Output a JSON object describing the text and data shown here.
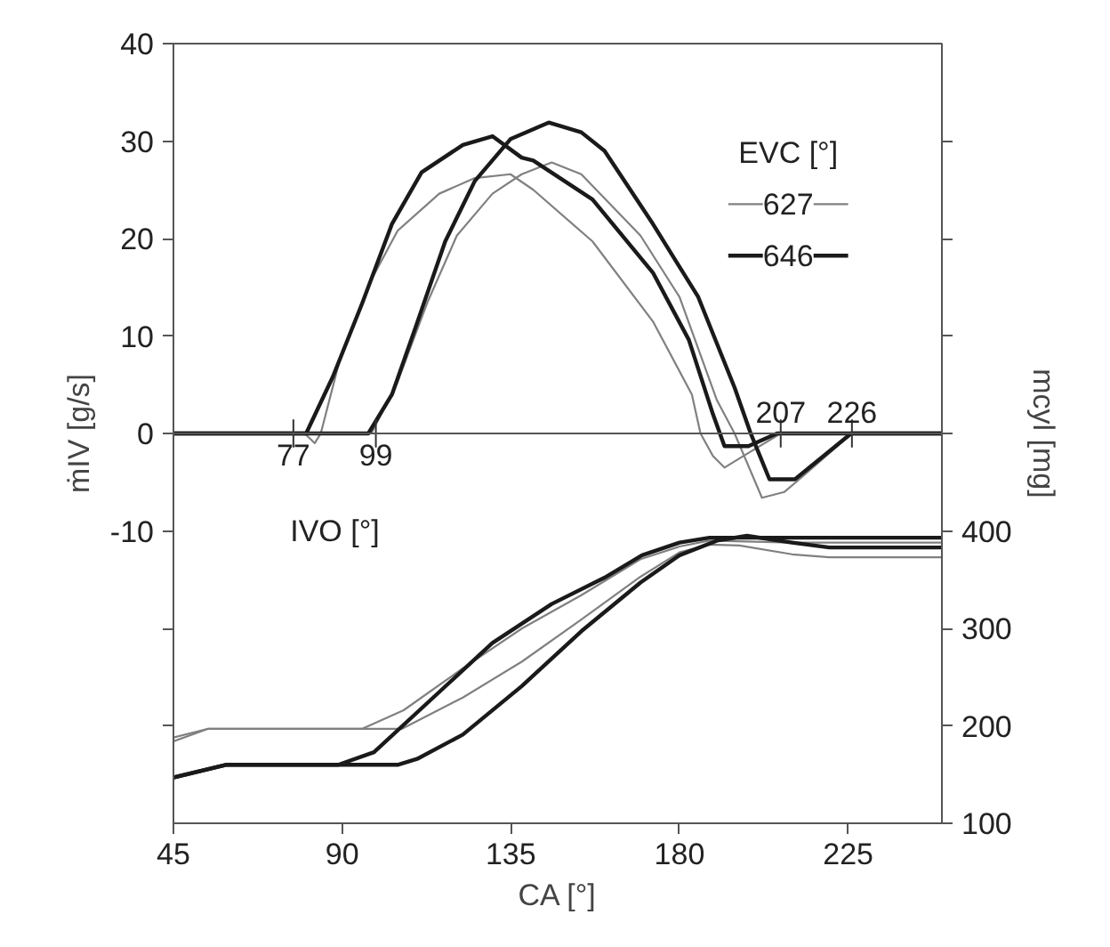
{
  "chart_data": {
    "type": "line",
    "xlabel": "CA [°]",
    "ylabel": "ṁIV [g/s]",
    "y2label": "mcyl [mg]",
    "legend_title": "EVC [°]",
    "xlim": [
      45,
      250
    ],
    "xticks": [
      45,
      90,
      135,
      180,
      225
    ],
    "ylim": [
      -40,
      40
    ],
    "yticks": [
      40,
      30,
      20,
      10,
      0,
      -10,
      {
        "value": -20,
        "label": null
      },
      {
        "value": -30,
        "label": null
      }
    ],
    "y2lim": [
      100,
      900
    ],
    "y2ticks": [
      100,
      200,
      300,
      400,
      {
        "value": 500,
        "label": null
      },
      {
        "value": 600,
        "label": null
      },
      {
        "value": 700,
        "label": null
      },
      {
        "value": 800,
        "label": null
      }
    ],
    "grid": false,
    "legend": "top right",
    "ref_lines": [
      {
        "axis": "y",
        "value": 0,
        "label": null,
        "color": "#555555"
      }
    ],
    "annotations": [
      {
        "text": "77",
        "x": 77,
        "y": 0
      },
      {
        "text": "99",
        "x": 99,
        "y": 0
      },
      {
        "text": "207",
        "x": 207,
        "y": 0
      },
      {
        "text": "226",
        "x": 226,
        "y": 0
      },
      "IVO [°]"
    ],
    "series": [
      {
        "name": "627",
        "color": "#808080",
        "x": [
          45,
          80,
          82.7,
          84.3,
          89,
          97,
          104.8,
          115.9,
          125.4,
          134.9,
          141,
          156.8,
          172.9,
          183.3,
          185.6,
          188.9,
          192,
          198.4,
          207,
          250
        ],
        "values": [
          0,
          0,
          -1,
          0,
          7,
          15.2,
          20.8,
          24.6,
          26.2,
          26.6,
          25,
          19.7,
          11.5,
          4,
          0,
          -2.3,
          -3.5,
          -2,
          0,
          0
        ]
      },
      {
        "color": "#808080",
        "x": [
          45,
          97.8,
          104.8,
          112.7,
          120.6,
          130.1,
          137.9,
          145.9,
          153.8,
          169.6,
          180,
          190,
          194.7,
          202,
          208,
          212.6,
          226,
          250
        ],
        "values": [
          0,
          0,
          5.3,
          13.4,
          20.3,
          24.6,
          26.6,
          27.8,
          26.6,
          20.3,
          14,
          3.4,
          0,
          -6.6,
          -6,
          -4.5,
          0,
          0
        ]
      },
      {
        "name": "646",
        "color": "#1a1a1a",
        "x": [
          45,
          80.4,
          87.5,
          95.4,
          103.3,
          111.2,
          122.2,
          130.1,
          137.9,
          141,
          156.8,
          172.9,
          182.5,
          188.9,
          192,
          198.4,
          206,
          250
        ],
        "values": [
          0,
          0,
          5.8,
          13.4,
          21.5,
          26.8,
          29.6,
          30.5,
          28.3,
          28,
          24,
          16.5,
          9.6,
          2,
          -1.3,
          -1.3,
          0,
          0
        ]
      },
      {
        "color": "#1a1a1a",
        "x": [
          45,
          97,
          103.3,
          109.6,
          117.5,
          125.4,
          134.9,
          145.1,
          153.8,
          160,
          172.9,
          185,
          194.7,
          199,
          204,
          210.8,
          225.8,
          250
        ],
        "values": [
          0,
          0,
          4,
          10.9,
          19.7,
          25.9,
          30.2,
          31.9,
          30.9,
          29,
          21.5,
          14,
          4.7,
          0,
          -4.7,
          -4.7,
          0,
          0
        ]
      },
      {
        "color": "#808080",
        "axis": "y2",
        "x": [
          45,
          54.3,
          95.4,
          106.4,
          122.2,
          138,
          153.8,
          169.6,
          180,
          188,
          200,
          210,
          250
        ],
        "values": [
          188,
          197,
          197,
          216,
          259,
          300,
          334,
          371,
          384,
          390,
          389,
          388,
          388
        ]
      },
      {
        "color": "#808080",
        "axis": "y2",
        "x": [
          45,
          54.3,
          106,
          122.2,
          138,
          153.8,
          169.6,
          180,
          188,
          196,
          210,
          220,
          250
        ],
        "values": [
          184,
          197,
          197,
          229,
          266,
          309,
          353,
          378,
          386,
          385,
          376,
          373,
          373
        ]
      },
      {
        "color": "#1a1a1a",
        "axis": "y2",
        "x": [
          45,
          59,
          89,
          98.5,
          114.3,
          130.1,
          145.9,
          160,
          170,
          180,
          188,
          200,
          250
        ],
        "values": [
          147,
          160,
          160,
          173,
          229,
          285,
          325,
          352,
          375,
          388,
          393,
          393,
          393
        ]
      },
      {
        "color": "#1a1a1a",
        "axis": "y2",
        "x": [
          45,
          59,
          104.8,
          110,
          122.2,
          138,
          153.8,
          169.6,
          180,
          190,
          198,
          210,
          220,
          250
        ],
        "values": [
          147,
          160,
          160,
          166,
          191,
          241,
          297,
          347,
          375,
          390,
          395,
          388,
          383,
          383
        ]
      }
    ]
  }
}
